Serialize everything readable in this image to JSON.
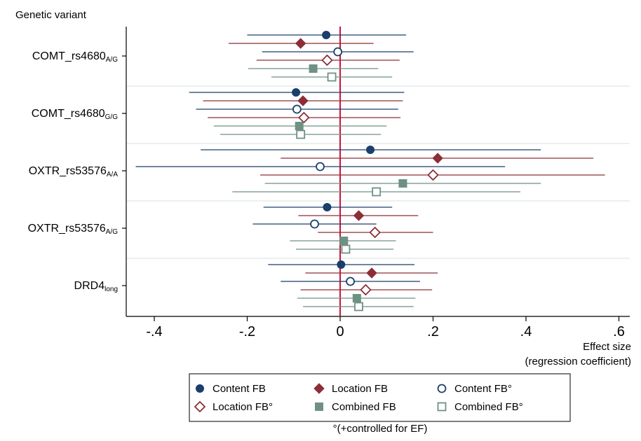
{
  "chart_data": {
    "type": "scatter",
    "subtype": "forest-plot",
    "y_axis_title": "Genetic variant",
    "x_axis_title_line1": "Effect size",
    "x_axis_title_line2": "(regression coefficient)",
    "xlim": [
      -0.46,
      0.62
    ],
    "x_ticks": [
      -0.4,
      -0.2,
      0,
      0.2,
      0.4,
      0.6
    ],
    "x_tick_labels": [
      "-.4",
      "-.2",
      "0",
      ".2",
      ".4",
      ".6"
    ],
    "reference_line_x": 0,
    "grid": "horizontal separators between variant groups",
    "legend_placement": "bottom",
    "footnote": "°(+controlled for EF)",
    "groups": [
      {
        "base": "COMT_rs4680",
        "sub": "A/G"
      },
      {
        "base": "COMT_rs4680",
        "sub": "G/G"
      },
      {
        "base": "OXTR_rs53576",
        "sub": "A/A"
      },
      {
        "base": "OXTR_rs53576",
        "sub": "A/G"
      },
      {
        "base": "DRD4",
        "sub": "long"
      }
    ],
    "series": [
      {
        "name": "Content FB",
        "color": "#1a3f6b",
        "marker": "filled-circle",
        "estimates": [
          -0.03,
          -0.095,
          0.065,
          -0.028,
          0.002
        ],
        "ci_low": [
          -0.2,
          -0.325,
          -0.3,
          -0.165,
          -0.155
        ],
        "ci_high": [
          0.142,
          0.138,
          0.432,
          0.112,
          0.16
        ]
      },
      {
        "name": "Location FB",
        "color": "#8c2e37",
        "marker": "filled-diamond",
        "estimates": [
          -0.085,
          -0.08,
          0.21,
          0.04,
          0.068
        ],
        "ci_low": [
          -0.24,
          -0.295,
          -0.128,
          -0.09,
          -0.075
        ],
        "ci_high": [
          0.072,
          0.135,
          0.545,
          0.168,
          0.21
        ]
      },
      {
        "name": "Content FB°",
        "color": "#1a3f6b",
        "marker": "hollow-circle",
        "estimates": [
          -0.005,
          -0.093,
          -0.043,
          -0.055,
          0.022
        ],
        "ci_low": [
          -0.168,
          -0.31,
          -0.44,
          -0.188,
          -0.128
        ],
        "ci_high": [
          0.158,
          0.125,
          0.355,
          0.078,
          0.172
        ]
      },
      {
        "name": "Location FB°",
        "color": "#8c2e37",
        "marker": "hollow-diamond",
        "estimates": [
          -0.028,
          -0.078,
          0.2,
          0.075,
          0.055
        ],
        "ci_low": [
          -0.18,
          -0.285,
          -0.172,
          -0.048,
          -0.085
        ],
        "ci_high": [
          0.128,
          0.13,
          0.57,
          0.2,
          0.198
        ]
      },
      {
        "name": "Combined FB",
        "color": "#6e9183",
        "marker": "filled-square",
        "estimates": [
          -0.058,
          -0.088,
          0.135,
          0.008,
          0.036
        ],
        "ci_low": [
          -0.198,
          -0.272,
          -0.162,
          -0.108,
          -0.092
        ],
        "ci_high": [
          0.082,
          0.1,
          0.432,
          0.12,
          0.162
        ]
      },
      {
        "name": "Combined FB°",
        "color": "#6e9183",
        "marker": "hollow-square",
        "estimates": [
          -0.018,
          -0.085,
          0.078,
          0.012,
          0.04
        ],
        "ci_low": [
          -0.148,
          -0.258,
          -0.232,
          -0.095,
          -0.08
        ],
        "ci_high": [
          0.112,
          0.088,
          0.388,
          0.115,
          0.158
        ]
      }
    ]
  }
}
